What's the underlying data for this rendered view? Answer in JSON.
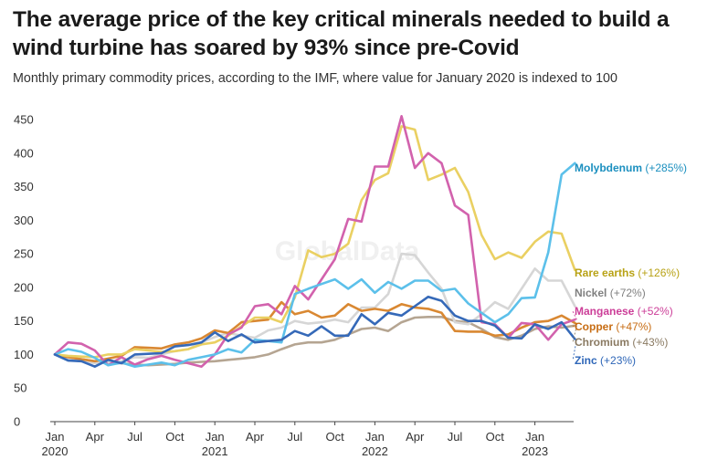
{
  "chart_data": {
    "type": "line",
    "title": "The average price of the key critical minerals needed to build a wind turbine has soared by 93% since pre-Covid",
    "subtitle": "Monthly primary commodity prices, according to the IMF, where value for January 2020 is indexed to 100",
    "xlabel": "",
    "ylabel": "",
    "ylim": [
      0,
      450
    ],
    "yticks": [
      0,
      50,
      100,
      150,
      200,
      250,
      300,
      350,
      400,
      450
    ],
    "xticks": [
      {
        "month": "Jan",
        "year": "2020"
      },
      {
        "month": "Apr",
        "year": ""
      },
      {
        "month": "Jul",
        "year": ""
      },
      {
        "month": "Oct",
        "year": ""
      },
      {
        "month": "Jan",
        "year": "2021"
      },
      {
        "month": "Apr",
        "year": ""
      },
      {
        "month": "Jul",
        "year": ""
      },
      {
        "month": "Oct",
        "year": ""
      },
      {
        "month": "Jan",
        "year": "2022"
      },
      {
        "month": "Apr",
        "year": ""
      },
      {
        "month": "Jul",
        "year": ""
      },
      {
        "month": "Oct",
        "year": ""
      },
      {
        "month": "Jan",
        "year": "2023"
      }
    ],
    "x": [
      "2020-01",
      "2020-02",
      "2020-03",
      "2020-04",
      "2020-05",
      "2020-06",
      "2020-07",
      "2020-08",
      "2020-09",
      "2020-10",
      "2020-11",
      "2020-12",
      "2021-01",
      "2021-02",
      "2021-03",
      "2021-04",
      "2021-05",
      "2021-06",
      "2021-07",
      "2021-08",
      "2021-09",
      "2021-10",
      "2021-11",
      "2021-12",
      "2022-01",
      "2022-02",
      "2022-03",
      "2022-04",
      "2022-05",
      "2022-06",
      "2022-07",
      "2022-08",
      "2022-09",
      "2022-10",
      "2022-11",
      "2022-12",
      "2023-01",
      "2023-02",
      "2023-03",
      "2023-04"
    ],
    "grid": false,
    "legend": "right",
    "watermark": "GlobalData",
    "series": [
      {
        "name": "Molybdenum",
        "label": "(+285%)",
        "color": "#1b8fbf",
        "values": [
          100,
          108,
          104,
          95,
          84,
          88,
          82,
          85,
          88,
          84,
          92,
          96,
          100,
          108,
          103,
          122,
          120,
          118,
          190,
          198,
          205,
          212,
          198,
          212,
          192,
          208,
          198,
          210,
          210,
          195,
          198,
          176,
          162,
          148,
          160,
          184,
          185,
          252,
          368,
          385
        ]
      },
      {
        "name": "Rare earths",
        "label": "(+126%)",
        "color": "#b8a215",
        "values": [
          100,
          98,
          97,
          96,
          100,
          100,
          108,
          106,
          104,
          105,
          108,
          115,
          118,
          128,
          142,
          155,
          155,
          148,
          185,
          255,
          245,
          250,
          265,
          330,
          360,
          370,
          440,
          435,
          360,
          368,
          378,
          342,
          278,
          242,
          252,
          244,
          268,
          283,
          280,
          226
        ]
      },
      {
        "name": "Nickel",
        "label": "(+72%)",
        "color": "#808080",
        "values": [
          100,
          92,
          90,
          87,
          88,
          90,
          96,
          95,
          100,
          105,
          108,
          118,
          126,
          132,
          128,
          125,
          136,
          140,
          150,
          146,
          148,
          152,
          148,
          170,
          170,
          190,
          250,
          248,
          222,
          198,
          148,
          145,
          160,
          178,
          168,
          198,
          228,
          210,
          210,
          172
        ]
      },
      {
        "name": "Manganese",
        "label": "(+52%)",
        "color": "#cc3e98",
        "values": [
          100,
          118,
          116,
          106,
          84,
          96,
          85,
          93,
          98,
          92,
          87,
          82,
          100,
          130,
          140,
          172,
          175,
          160,
          202,
          182,
          212,
          242,
          302,
          298,
          380,
          380,
          455,
          378,
          400,
          385,
          322,
          308,
          148,
          145,
          125,
          147,
          145,
          122,
          145,
          152
        ]
      },
      {
        "name": "Copper",
        "label": "(+47%)",
        "color": "#c76d14",
        "values": [
          100,
          96,
          93,
          90,
          94,
          98,
          111,
          110,
          109,
          115,
          118,
          124,
          136,
          132,
          148,
          150,
          152,
          178,
          160,
          165,
          155,
          158,
          175,
          165,
          168,
          165,
          175,
          170,
          168,
          162,
          135,
          134,
          134,
          128,
          130,
          140,
          148,
          150,
          158,
          147
        ]
      },
      {
        "name": "Chromium",
        "label": "(+43%)",
        "color": "#8a7a62",
        "values": [
          100,
          96,
          93,
          90,
          88,
          87,
          85,
          84,
          85,
          86,
          88,
          89,
          90,
          92,
          94,
          96,
          100,
          108,
          115,
          118,
          118,
          122,
          130,
          138,
          140,
          135,
          148,
          155,
          156,
          156,
          150,
          148,
          138,
          126,
          122,
          128,
          138,
          142,
          140,
          143
        ]
      },
      {
        "name": "Zinc",
        "label": "(+23%)",
        "color": "#2e66b8",
        "values": [
          100,
          91,
          90,
          82,
          92,
          87,
          100,
          101,
          102,
          112,
          114,
          118,
          133,
          120,
          130,
          118,
          120,
          122,
          135,
          128,
          142,
          128,
          128,
          160,
          145,
          162,
          158,
          172,
          186,
          180,
          158,
          150,
          150,
          143,
          125,
          124,
          145,
          138,
          148,
          123
        ]
      }
    ]
  }
}
